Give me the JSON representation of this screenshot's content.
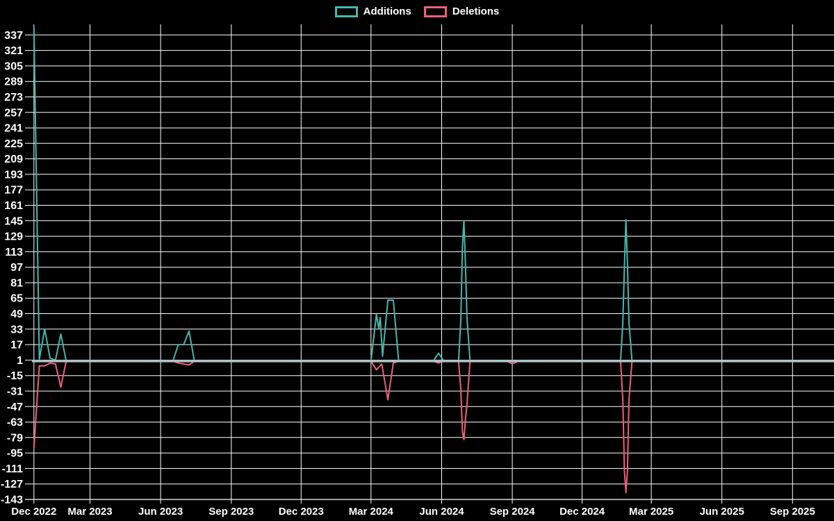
{
  "chart_data": {
    "type": "line",
    "title": "",
    "background": "#000000",
    "grid": true,
    "legend_position": "top-center",
    "axis_color": "#ffffff",
    "tick_label_color": "#ffffff",
    "zero_line_color": "#b0c4cc",
    "y_domain": [
      -143,
      348
    ],
    "y_ticks": [
      337,
      321,
      305,
      289,
      273,
      257,
      241,
      225,
      209,
      193,
      177,
      161,
      145,
      129,
      113,
      97,
      81,
      65,
      49,
      33,
      17,
      1,
      -15,
      -31,
      -47,
      -63,
      -79,
      -95,
      -111,
      -127,
      -143
    ],
    "x_domain_days": [
      -8,
      1042
    ],
    "x_ticks": [
      {
        "label": "Dec 2022",
        "day": 0
      },
      {
        "label": "Mar 2023",
        "day": 73
      },
      {
        "label": "Jun 2023",
        "day": 165
      },
      {
        "label": "Sep 2023",
        "day": 257
      },
      {
        "label": "Dec 2023",
        "day": 348
      },
      {
        "label": "Mar 2024",
        "day": 439
      },
      {
        "label": "Jun 2024",
        "day": 531
      },
      {
        "label": "Sep 2024",
        "day": 623
      },
      {
        "label": "Dec 2024",
        "day": 714
      },
      {
        "label": "Mar 2025",
        "day": 804
      },
      {
        "label": "Jun 2025",
        "day": 896
      },
      {
        "label": "Sep 2025",
        "day": 988
      }
    ],
    "series": [
      {
        "name": "Additions",
        "color": "#46b8ae",
        "points": [
          [
            0,
            345
          ],
          [
            7,
            2
          ],
          [
            14,
            33
          ],
          [
            21,
            3
          ],
          [
            28,
            1
          ],
          [
            35,
            28
          ],
          [
            42,
            0
          ],
          [
            181,
            0
          ],
          [
            188,
            17
          ],
          [
            195,
            17
          ],
          [
            202,
            31
          ],
          [
            209,
            0
          ],
          [
            439,
            0
          ],
          [
            446,
            48
          ],
          [
            449,
            34
          ],
          [
            451,
            45
          ],
          [
            454,
            5
          ],
          [
            461,
            63
          ],
          [
            468,
            63
          ],
          [
            475,
            0
          ],
          [
            520,
            0
          ],
          [
            527,
            8
          ],
          [
            534,
            0
          ],
          [
            553,
            0
          ],
          [
            556,
            43
          ],
          [
            558,
            117
          ],
          [
            560,
            145
          ],
          [
            562,
            100
          ],
          [
            564,
            45
          ],
          [
            568,
            0
          ],
          [
            764,
            0
          ],
          [
            767,
            40
          ],
          [
            769,
            97
          ],
          [
            771,
            146
          ],
          [
            773,
            100
          ],
          [
            775,
            40
          ],
          [
            779,
            0
          ],
          [
            1042,
            0
          ]
        ]
      },
      {
        "name": "Deletions",
        "color": "#f05f7c",
        "points": [
          [
            0,
            -90
          ],
          [
            7,
            -5
          ],
          [
            14,
            -5
          ],
          [
            21,
            -2
          ],
          [
            28,
            -3
          ],
          [
            35,
            -27
          ],
          [
            42,
            0
          ],
          [
            181,
            0
          ],
          [
            188,
            -2
          ],
          [
            195,
            -3
          ],
          [
            202,
            -4
          ],
          [
            209,
            0
          ],
          [
            439,
            0
          ],
          [
            446,
            -9
          ],
          [
            453,
            -3
          ],
          [
            461,
            -40
          ],
          [
            468,
            -2
          ],
          [
            475,
            0
          ],
          [
            520,
            0
          ],
          [
            527,
            -2
          ],
          [
            534,
            0
          ],
          [
            553,
            0
          ],
          [
            556,
            -30
          ],
          [
            558,
            -73
          ],
          [
            560,
            -81
          ],
          [
            562,
            -60
          ],
          [
            564,
            -45
          ],
          [
            568,
            0
          ],
          [
            616,
            0
          ],
          [
            623,
            -3
          ],
          [
            631,
            0
          ],
          [
            764,
            0
          ],
          [
            767,
            -40
          ],
          [
            769,
            -113
          ],
          [
            771,
            -136
          ],
          [
            773,
            -113
          ],
          [
            775,
            -40
          ],
          [
            779,
            0
          ],
          [
            1042,
            0
          ]
        ]
      }
    ]
  }
}
